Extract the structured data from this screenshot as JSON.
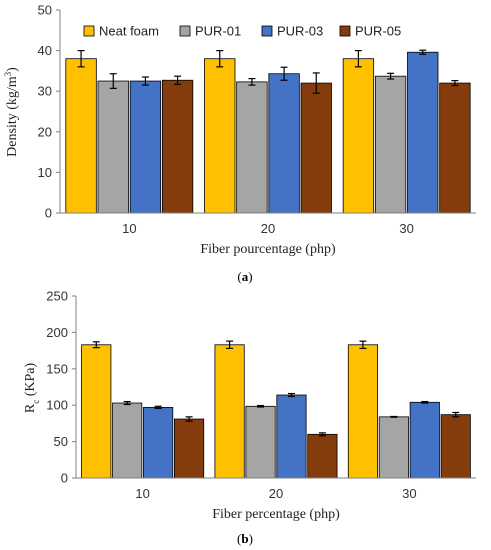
{
  "chart_data": [
    {
      "type": "bar",
      "caption_letter": "a",
      "categories": [
        "10",
        "20",
        "30"
      ],
      "series": [
        {
          "name": "Neat foam",
          "values": [
            38,
            38,
            38
          ],
          "errors": [
            2.0,
            2.0,
            2.0
          ]
        },
        {
          "name": "PUR-01",
          "values": [
            32.5,
            32.3,
            33.7
          ],
          "errors": [
            1.8,
            0.8,
            0.7
          ]
        },
        {
          "name": "PUR-03",
          "values": [
            32.5,
            34.3,
            39.6
          ],
          "errors": [
            1.0,
            1.6,
            0.5
          ]
        },
        {
          "name": "PUR-05",
          "values": [
            32.7,
            32,
            32
          ],
          "errors": [
            1.0,
            2.5,
            0.6
          ]
        }
      ],
      "xlabel": "Fiber pourcentage (php)",
      "ylabel_main": "Density (kg/m",
      "ylabel_sup": "3",
      "ylabel_end": ")",
      "ylim": [
        0,
        50
      ],
      "yticks": [
        "0",
        "10",
        "20",
        "30",
        "40",
        "50"
      ],
      "legend": "top",
      "grid": false
    },
    {
      "type": "bar",
      "caption_letter": "b",
      "categories": [
        "10",
        "20",
        "30"
      ],
      "series": [
        {
          "name": "Neat foam",
          "values": [
            183,
            183,
            183
          ],
          "errors": [
            4,
            5,
            5
          ]
        },
        {
          "name": "PUR-01",
          "values": [
            103,
            98.5,
            84
          ],
          "errors": [
            2,
            1,
            0.5
          ]
        },
        {
          "name": "PUR-03",
          "values": [
            97,
            114,
            104
          ],
          "errors": [
            1.5,
            2,
            1
          ]
        },
        {
          "name": "PUR-05",
          "values": [
            81,
            60,
            87
          ],
          "errors": [
            3,
            2,
            3
          ]
        }
      ],
      "xlabel": "Fiber percentage (php)",
      "ylabel_main": "R",
      "ylabel_sub": "c",
      "ylabel_end": " (KPa)",
      "ylim": [
        0,
        250
      ],
      "yticks": [
        "0",
        "50",
        "100",
        "150",
        "200",
        "250"
      ],
      "grid": false
    }
  ],
  "colors": [
    "#FFC000",
    "#A5A5A5",
    "#4472C4",
    "#843C0C"
  ]
}
